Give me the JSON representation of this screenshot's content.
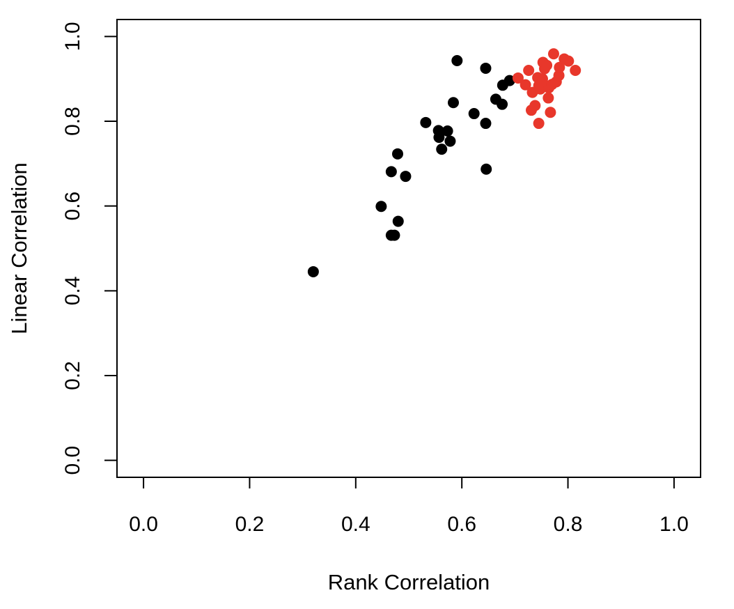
{
  "chart_data": {
    "type": "scatter",
    "xlabel": "Rank Correlation",
    "ylabel": "Linear Correlation",
    "xlim": [
      -0.05,
      1.05
    ],
    "ylim": [
      -0.04,
      1.04
    ],
    "x_ticks": [
      "0.0",
      "0.2",
      "0.4",
      "0.6",
      "0.8",
      "1.0"
    ],
    "y_ticks": [
      "0.0",
      "0.2",
      "0.4",
      "0.6",
      "0.8",
      "1.0"
    ],
    "grid": false,
    "legend": "none",
    "series": [
      {
        "color": "#000000",
        "points": [
          [
            0.32,
            0.445
          ],
          [
            0.448,
            0.599
          ],
          [
            0.467,
            0.531
          ],
          [
            0.473,
            0.531
          ],
          [
            0.48,
            0.564
          ],
          [
            0.467,
            0.681
          ],
          [
            0.479,
            0.723
          ],
          [
            0.494,
            0.67
          ],
          [
            0.532,
            0.797
          ],
          [
            0.556,
            0.778
          ],
          [
            0.557,
            0.762
          ],
          [
            0.562,
            0.734
          ],
          [
            0.573,
            0.777
          ],
          [
            0.578,
            0.753
          ],
          [
            0.584,
            0.844
          ],
          [
            0.591,
            0.943
          ],
          [
            0.623,
            0.818
          ],
          [
            0.645,
            0.925
          ],
          [
            0.645,
            0.795
          ],
          [
            0.646,
            0.687
          ],
          [
            0.664,
            0.852
          ],
          [
            0.676,
            0.84
          ],
          [
            0.677,
            0.885
          ],
          [
            0.69,
            0.896
          ]
        ]
      },
      {
        "color": "#e8372b",
        "points": [
          [
            0.706,
            0.902
          ],
          [
            0.72,
            0.886
          ],
          [
            0.726,
            0.92
          ],
          [
            0.731,
            0.826
          ],
          [
            0.733,
            0.868
          ],
          [
            0.738,
            0.837
          ],
          [
            0.743,
            0.903
          ],
          [
            0.745,
            0.884
          ],
          [
            0.745,
            0.795
          ],
          [
            0.748,
            0.876
          ],
          [
            0.752,
            0.9
          ],
          [
            0.753,
            0.939
          ],
          [
            0.756,
            0.924
          ],
          [
            0.758,
            0.884
          ],
          [
            0.76,
            0.932
          ],
          [
            0.763,
            0.855
          ],
          [
            0.764,
            0.879
          ],
          [
            0.767,
            0.821
          ],
          [
            0.77,
            0.887
          ],
          [
            0.773,
            0.959
          ],
          [
            0.778,
            0.893
          ],
          [
            0.783,
            0.908
          ],
          [
            0.784,
            0.927
          ],
          [
            0.793,
            0.947
          ],
          [
            0.801,
            0.942
          ],
          [
            0.814,
            0.92
          ]
        ]
      }
    ]
  }
}
